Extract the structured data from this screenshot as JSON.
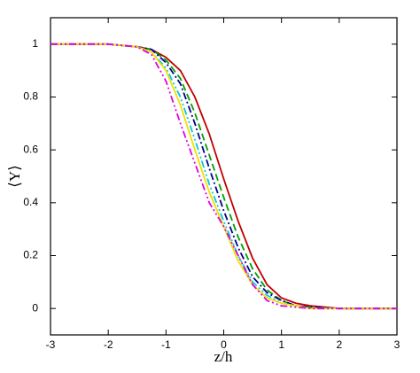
{
  "chart_data": {
    "type": "line",
    "x_label": "z/h",
    "y_label": "⟨Y⟩",
    "x": [
      -3,
      -2.5,
      -2,
      -1.5,
      -1.25,
      -1,
      -0.75,
      -0.5,
      -0.25,
      0,
      0.25,
      0.5,
      0.75,
      1,
      1.25,
      1.5,
      2,
      2.5,
      3
    ],
    "series": [
      {
        "color": "#c00000",
        "dash": "solid",
        "values": [
          1,
          1,
          1,
          0.99,
          0.98,
          0.95,
          0.9,
          0.8,
          0.66,
          0.49,
          0.33,
          0.19,
          0.09,
          0.04,
          0.02,
          0.01,
          0,
          0,
          0
        ]
      },
      {
        "color": "#00a000",
        "dash": "dashed",
        "values": [
          1,
          1,
          1,
          0.99,
          0.98,
          0.94,
          0.87,
          0.74,
          0.58,
          0.42,
          0.27,
          0.15,
          0.07,
          0.03,
          0.01,
          0.005,
          0,
          0,
          0
        ]
      },
      {
        "color": "#000090",
        "dash": "dashdot",
        "values": [
          1,
          1,
          1,
          0.99,
          0.98,
          0.93,
          0.85,
          0.7,
          0.53,
          0.37,
          0.23,
          0.12,
          0.06,
          0.03,
          0.01,
          0.005,
          0,
          0,
          0
        ]
      },
      {
        "color": "#00c8e0",
        "dash": "dashdotdot",
        "values": [
          1,
          1,
          1,
          0.99,
          0.97,
          0.91,
          0.8,
          0.64,
          0.47,
          0.33,
          0.2,
          0.1,
          0.05,
          0.02,
          0.01,
          0,
          0,
          0,
          0
        ]
      },
      {
        "color": "#f0e000",
        "dash": "solid",
        "values": [
          1,
          1,
          1,
          0.99,
          0.97,
          0.9,
          0.77,
          0.6,
          0.44,
          0.31,
          0.18,
          0.09,
          0.04,
          0.02,
          0.01,
          0,
          0,
          0,
          0
        ]
      },
      {
        "color": "#e000e0",
        "dash": "dashdotdot",
        "values": [
          1,
          1,
          1,
          0.99,
          0.96,
          0.86,
          0.7,
          0.55,
          0.4,
          0.31,
          0.2,
          0.09,
          0.03,
          0.01,
          0.005,
          0,
          0,
          0,
          0
        ]
      }
    ],
    "xlim": [
      -3,
      3
    ],
    "xticks": [
      -3,
      -2,
      -1,
      0,
      1,
      2,
      3
    ],
    "ylim": [
      -0.1,
      1.1
    ],
    "yticks": [
      0,
      0.2,
      0.4,
      0.6,
      0.8,
      1
    ]
  }
}
